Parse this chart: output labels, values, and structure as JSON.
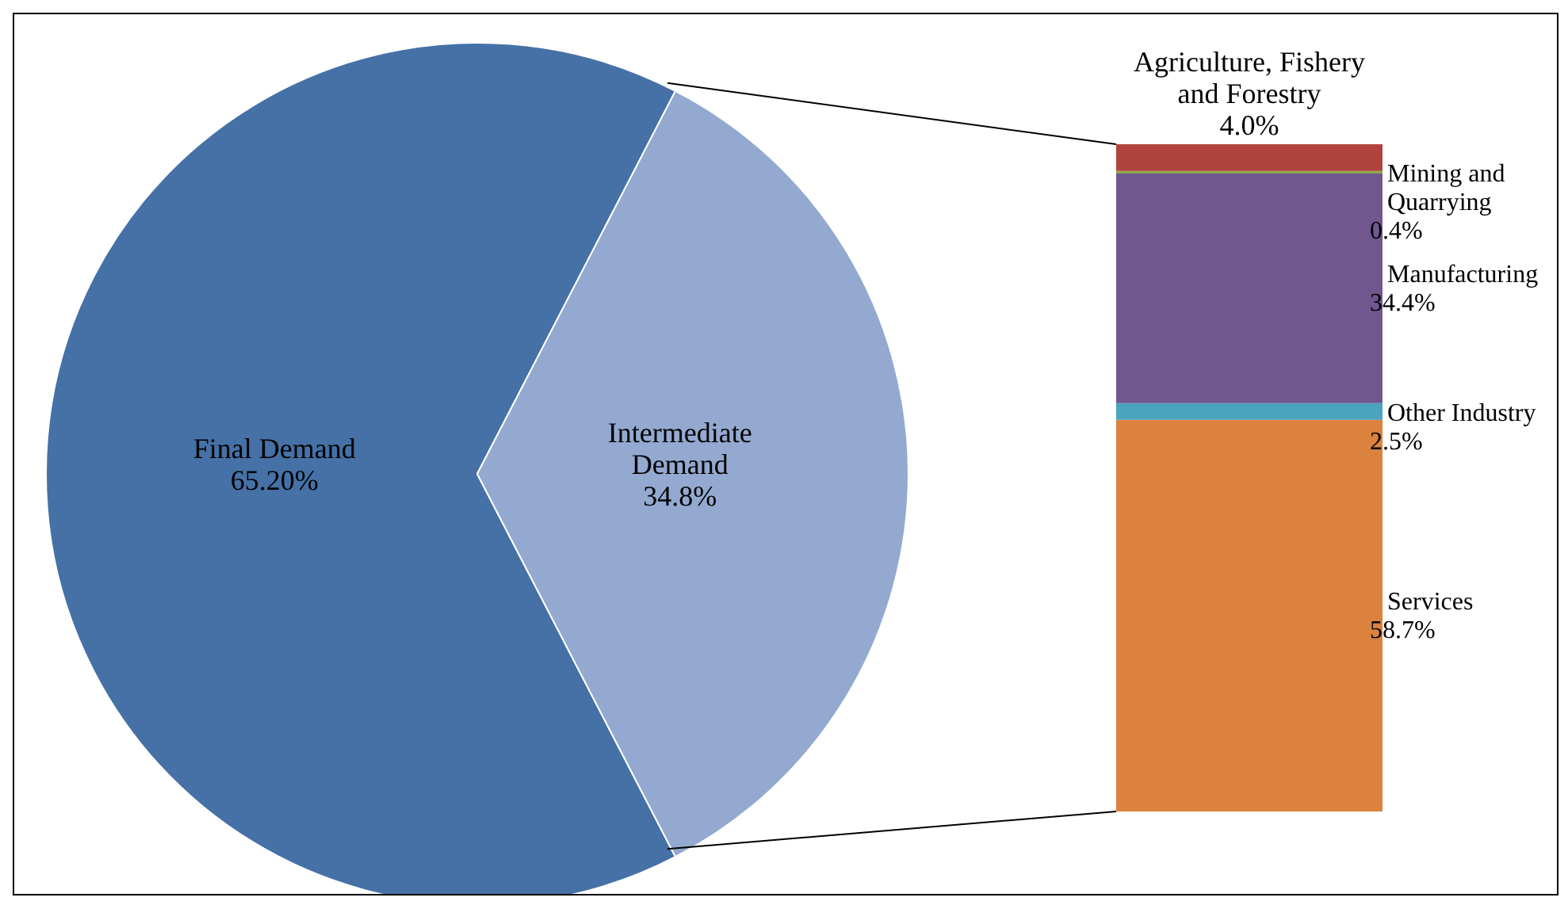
{
  "chart_data": [
    {
      "type": "pie",
      "categories": [
        "Final Demand",
        "Intermediate Demand"
      ],
      "values": [
        65.2,
        34.8
      ],
      "colors": [
        "#4571a6",
        "#93a9d0"
      ],
      "value_labels": [
        "65.20%",
        "34.8%"
      ]
    },
    {
      "type": "bar",
      "stacked": true,
      "categories": [
        null
      ],
      "series": [
        {
          "name": "Services",
          "color": "#db823f",
          "values": [
            58.7
          ],
          "value_labels": [
            "58.7%"
          ]
        },
        {
          "name": "Other Industry",
          "color": "#4ba3be",
          "values": [
            2.5
          ],
          "value_labels": [
            "2.5%"
          ]
        },
        {
          "name": "Manufacturing",
          "color": "#70578e",
          "values": [
            34.4
          ],
          "value_labels": [
            "34.4%"
          ]
        },
        {
          "name": "Mining and Quarrying",
          "color": "#8fa84b",
          "values": [
            0.4
          ],
          "value_labels": [
            "0.4%"
          ]
        },
        {
          "name": "Agriculture, Fishery and Forestry",
          "color": "#b1433e",
          "values": [
            4.0
          ],
          "value_labels": [
            "4.0%"
          ]
        }
      ]
    }
  ]
}
